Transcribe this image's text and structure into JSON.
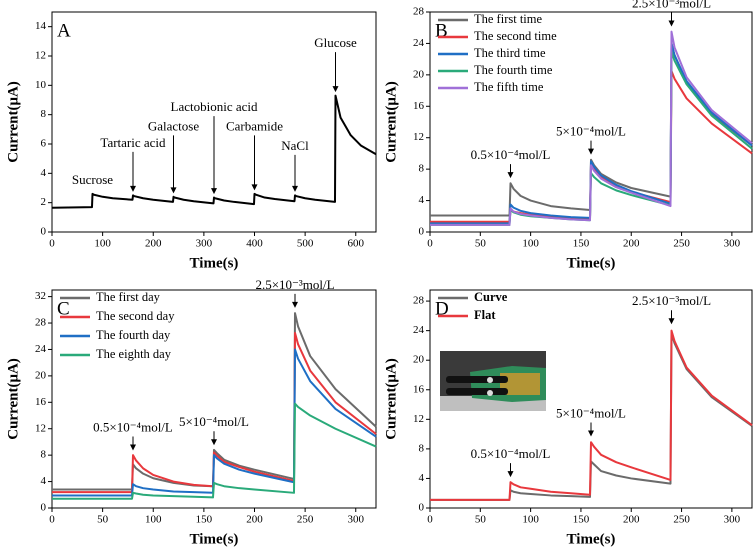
{
  "chart_data": [
    {
      "type": "line",
      "label": "A",
      "xlabel": "Time(s)",
      "ylabel": "Current(μA)",
      "x": [
        0,
        79,
        80,
        82,
        100,
        120,
        159,
        160,
        162,
        180,
        200,
        239,
        240,
        242,
        260,
        280,
        319,
        320,
        322,
        340,
        360,
        399,
        400,
        402,
        420,
        440,
        479,
        480,
        482,
        500,
        520,
        559,
        560,
        562,
        570,
        590,
        610,
        640
      ],
      "xlim": [
        0,
        640
      ],
      "xticks": [
        0,
        100,
        200,
        300,
        400,
        500,
        600
      ],
      "ylim": [
        0,
        15
      ],
      "yticks": [
        0,
        2,
        4,
        6,
        8,
        10,
        12,
        14
      ],
      "series": [
        {
          "color": "#000000",
          "values": [
            1.65,
            1.7,
            2.6,
            2.55,
            2.4,
            2.3,
            2.2,
            2.5,
            2.45,
            2.3,
            2.2,
            2.05,
            2.4,
            2.35,
            2.2,
            2.1,
            1.95,
            2.35,
            2.3,
            2.15,
            2.05,
            1.9,
            2.6,
            2.55,
            2.35,
            2.25,
            2.1,
            2.5,
            2.45,
            2.3,
            2.2,
            2.05,
            9.3,
            9.0,
            7.8,
            6.6,
            5.9,
            5.3
          ]
        }
      ],
      "annotations": [
        {
          "text": "Sucrose",
          "x": 80,
          "y": 2.8
        },
        {
          "text": "Tartaric acid",
          "x": 160,
          "y": 2.6
        },
        {
          "text": "Galactose",
          "x": 240,
          "y": 2.5
        },
        {
          "text": "Lactobionic acid",
          "x": 320,
          "y": 2.45
        },
        {
          "text": "Carbamide",
          "x": 400,
          "y": 2.7
        },
        {
          "text": "NaCl",
          "x": 480,
          "y": 2.6
        },
        {
          "text": "Glucose",
          "x": 560,
          "y": 9.4
        }
      ]
    },
    {
      "type": "line",
      "label": "B",
      "xlabel": "Time(s)",
      "ylabel": "Current(μA)",
      "x": [
        0,
        79,
        80,
        83,
        90,
        100,
        120,
        140,
        159,
        160,
        163,
        170,
        185,
        200,
        239,
        240,
        243,
        255,
        280,
        320
      ],
      "xlim": [
        0,
        320
      ],
      "xticks": [
        0,
        50,
        100,
        150,
        200,
        250,
        300
      ],
      "ylim": [
        0,
        28
      ],
      "yticks": [
        0,
        4,
        8,
        12,
        16,
        20,
        24,
        28
      ],
      "legend": "upper left",
      "series": [
        {
          "name": "The first time",
          "color": "#6b6b6b",
          "values": [
            2.1,
            2.1,
            6.2,
            5.5,
            4.6,
            4.0,
            3.3,
            3.0,
            2.8,
            9.2,
            8.5,
            7.4,
            6.3,
            5.6,
            4.5,
            24.0,
            22.5,
            19.0,
            15.0,
            11.0
          ]
        },
        {
          "name": "The second time",
          "color": "#e8383d",
          "values": [
            1.3,
            1.3,
            2.8,
            2.6,
            2.4,
            2.2,
            1.9,
            1.8,
            1.7,
            8.6,
            8.0,
            7.0,
            5.9,
            5.1,
            3.8,
            20.5,
            19.5,
            17.0,
            13.8,
            10.0
          ]
        },
        {
          "name": "The third time",
          "color": "#1f6fc5",
          "values": [
            1.1,
            1.1,
            3.5,
            3.1,
            2.7,
            2.4,
            2.1,
            1.9,
            1.8,
            9.0,
            8.3,
            7.2,
            6.0,
            5.2,
            3.6,
            24.0,
            22.5,
            19.2,
            15.2,
            11.0
          ]
        },
        {
          "name": "The fourth time",
          "color": "#2aaa7a",
          "values": [
            0.9,
            0.9,
            2.8,
            2.5,
            2.2,
            2.0,
            1.8,
            1.6,
            1.5,
            7.5,
            7.0,
            6.2,
            5.3,
            4.7,
            3.4,
            23.0,
            21.8,
            18.8,
            14.8,
            10.6
          ]
        },
        {
          "name": "The fifth time",
          "color": "#a070d8",
          "values": [
            0.9,
            0.9,
            3.0,
            2.6,
            2.3,
            2.1,
            1.8,
            1.6,
            1.5,
            8.5,
            7.8,
            6.8,
            5.7,
            5.0,
            3.3,
            25.5,
            23.5,
            19.7,
            15.5,
            11.3
          ]
        }
      ],
      "annotations": [
        {
          "text": "0.5×10⁻⁴mol/L",
          "x": 80,
          "y": 6.6
        },
        {
          "text": "5×10⁻⁴mol/L",
          "x": 160,
          "y": 9.6
        },
        {
          "text": "2.5×10⁻³mol/L",
          "x": 240,
          "y": 25.9
        }
      ]
    },
    {
      "type": "line",
      "label": "C",
      "xlabel": "Time(s)",
      "ylabel": "Current(μA)",
      "x": [
        0,
        79,
        80,
        83,
        90,
        100,
        120,
        140,
        159,
        160,
        163,
        170,
        185,
        200,
        239,
        240,
        243,
        255,
        280,
        320
      ],
      "xlim": [
        0,
        320
      ],
      "xticks": [
        0,
        50,
        100,
        150,
        200,
        250,
        300
      ],
      "ylim": [
        0,
        33
      ],
      "yticks": [
        0,
        4,
        8,
        12,
        16,
        20,
        24,
        28,
        32
      ],
      "legend": "upper left",
      "series": [
        {
          "name": "The first day",
          "color": "#6b6b6b",
          "values": [
            2.8,
            2.8,
            6.6,
            6.0,
            5.2,
            4.5,
            3.8,
            3.4,
            3.3,
            8.8,
            8.3,
            7.3,
            6.4,
            5.8,
            4.4,
            29.5,
            27.5,
            23.0,
            18.0,
            12.3
          ]
        },
        {
          "name": "The second day",
          "color": "#e8383d",
          "values": [
            2.4,
            2.4,
            8.0,
            7.2,
            6.0,
            5.0,
            4.0,
            3.5,
            3.3,
            8.4,
            7.9,
            7.0,
            6.2,
            5.5,
            4.1,
            26.5,
            24.8,
            20.8,
            16.0,
            11.2
          ]
        },
        {
          "name": "The fourth day",
          "color": "#1f6fc5",
          "values": [
            1.9,
            1.9,
            3.6,
            3.3,
            3.0,
            2.8,
            2.5,
            2.4,
            2.3,
            8.0,
            7.5,
            6.7,
            5.8,
            5.2,
            3.9,
            24.0,
            22.6,
            19.2,
            15.0,
            10.8
          ]
        },
        {
          "name": "The eighth day",
          "color": "#2aaa7a",
          "values": [
            1.4,
            1.4,
            2.3,
            2.2,
            2.0,
            1.9,
            1.8,
            1.7,
            1.6,
            3.8,
            3.6,
            3.3,
            3.0,
            2.8,
            2.3,
            15.8,
            15.3,
            14.0,
            12.0,
            9.3
          ]
        }
      ],
      "annotations": [
        {
          "text": "0.5×10⁻⁴mol/L",
          "x": 80,
          "y": 8.4
        },
        {
          "text": "5×10⁻⁴mol/L",
          "x": 160,
          "y": 9.2
        },
        {
          "text": "2.5×10⁻³mol/L",
          "x": 240,
          "y": 30.0
        }
      ]
    },
    {
      "type": "line",
      "label": "D",
      "xlabel": "Time(s)",
      "ylabel": "Current(μA)",
      "x": [
        0,
        79,
        80,
        83,
        90,
        100,
        120,
        140,
        159,
        160,
        163,
        170,
        185,
        200,
        239,
        240,
        243,
        255,
        280,
        320
      ],
      "xlim": [
        0,
        320
      ],
      "xticks": [
        0,
        50,
        100,
        150,
        200,
        250,
        300
      ],
      "ylim": [
        0,
        29.5
      ],
      "yticks": [
        0,
        4,
        8,
        12,
        16,
        20,
        24,
        28
      ],
      "legend": "upper left",
      "series": [
        {
          "name": "Curve",
          "color": "#6b6b6b",
          "values": [
            1.1,
            1.1,
            2.4,
            2.2,
            2.0,
            1.9,
            1.7,
            1.6,
            1.5,
            6.3,
            5.9,
            5.0,
            4.4,
            4.0,
            3.3,
            23.6,
            22.3,
            18.8,
            15.0,
            11.1
          ]
        },
        {
          "name": "Flat",
          "color": "#e8383d",
          "values": [
            1.1,
            1.1,
            3.5,
            3.2,
            2.8,
            2.6,
            2.2,
            2.0,
            1.8,
            8.9,
            8.3,
            7.2,
            6.2,
            5.5,
            3.8,
            24.0,
            22.6,
            19.0,
            15.2,
            11.2
          ]
        }
      ],
      "annotations": [
        {
          "text": "0.5×10⁻⁴mol/L",
          "x": 80,
          "y": 3.9
        },
        {
          "text": "5×10⁻⁴mol/L",
          "x": 160,
          "y": 9.4
        },
        {
          "text": "2.5×10⁻³mol/L",
          "x": 240,
          "y": 24.6
        }
      ]
    }
  ]
}
